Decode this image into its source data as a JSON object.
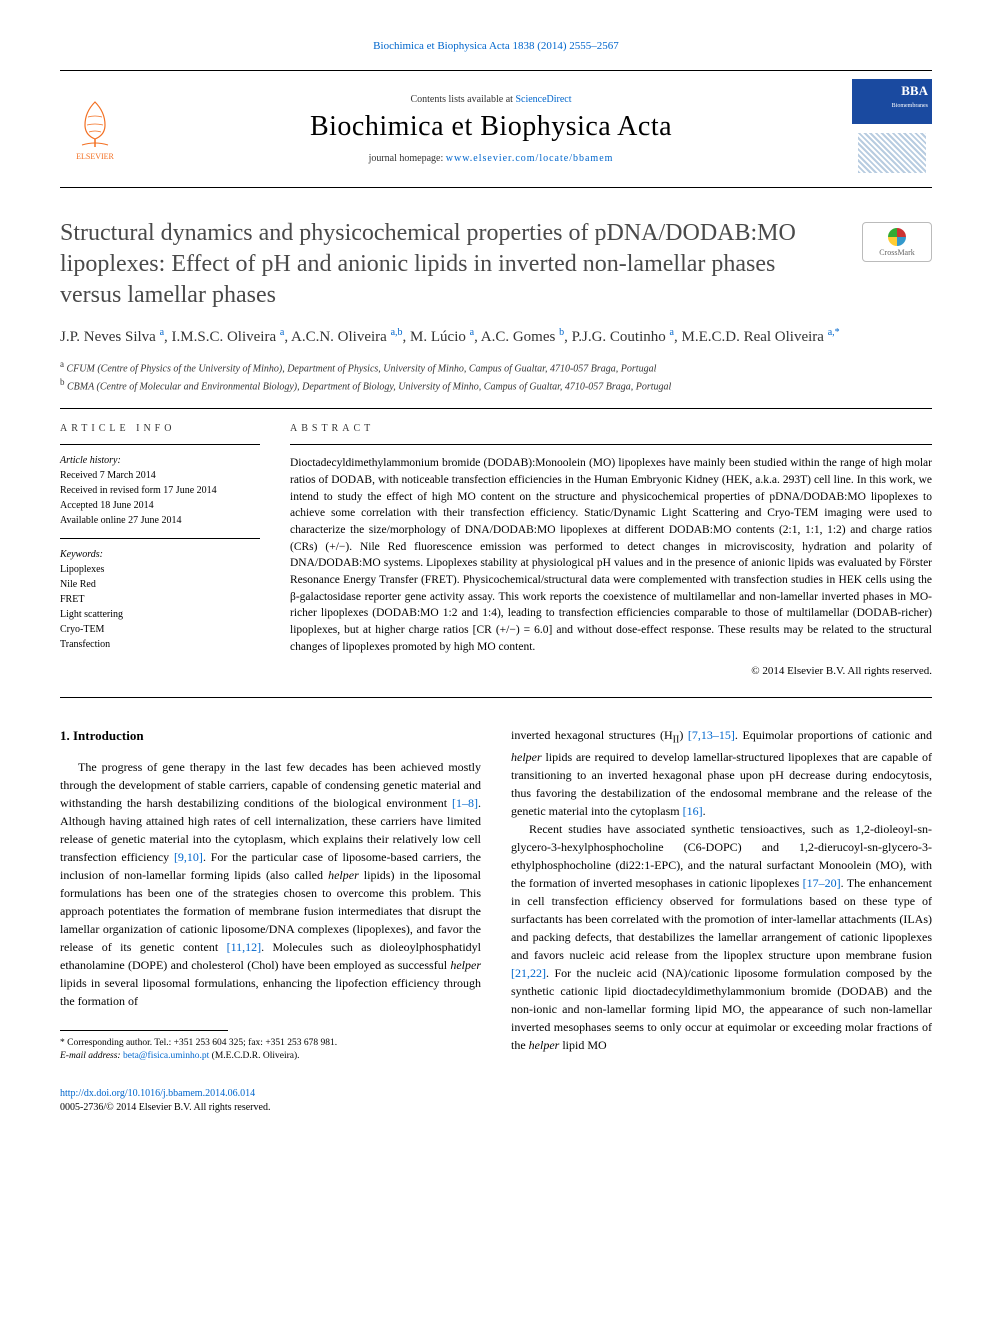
{
  "top_citation": "Biochimica et Biophysica Acta 1838 (2014) 2555–2567",
  "header": {
    "contents_prefix": "Contents lists available at ",
    "contents_link": "ScienceDirect",
    "journal_name": "Biochimica et Biophysica Acta",
    "homepage_prefix": "journal homepage: ",
    "homepage_url": "www.elsevier.com/locate/bbamem",
    "elsevier_label": "ELSEVIER",
    "cover_label": "BBA",
    "cover_sub": "Biomembranes"
  },
  "title": "Structural dynamics and physicochemical properties of pDNA/DODAB:MO lipoplexes: Effect of pH and anionic lipids in inverted non-lamellar phases versus lamellar phases",
  "crossmark_label": "CrossMark",
  "authors_html": "J.P. Neves Silva <sup>a</sup>, I.M.S.C. Oliveira <sup>a</sup>, A.C.N. Oliveira <sup>a,b</sup>, M. Lúcio <sup>a</sup>, A.C. Gomes <sup>b</sup>, P.J.G. Coutinho <sup>a</sup>, M.E.C.D. Real Oliveira <sup>a,*</sup>",
  "affiliations": {
    "a": "CFUM (Centre of Physics of the University of Minho), Department of Physics, University of Minho, Campus of Gualtar, 4710-057 Braga, Portugal",
    "b": "CBMA (Centre of Molecular and Environmental Biology), Department of Biology, University of Minho, Campus of Gualtar, 4710-057 Braga, Portugal"
  },
  "article_info": {
    "heading": "ARTICLE INFO",
    "history_title": "Article history:",
    "history": [
      "Received 7 March 2014",
      "Received in revised form 17 June 2014",
      "Accepted 18 June 2014",
      "Available online 27 June 2014"
    ],
    "keywords_title": "Keywords:",
    "keywords": [
      "Lipoplexes",
      "Nile Red",
      "FRET",
      "Light scattering",
      "Cryo-TEM",
      "Transfection"
    ]
  },
  "abstract": {
    "heading": "ABSTRACT",
    "body": "Dioctadecyldimethylammonium bromide (DODAB):Monoolein (MO) lipoplexes have mainly been studied within the range of high molar ratios of DODAB, with noticeable transfection efficiencies in the Human Embryonic Kidney (HEK, a.k.a. 293T) cell line. In this work, we intend to study the effect of high MO content on the structure and physicochemical properties of pDNA/DODAB:MO lipoplexes to achieve some correlation with their transfection efficiency. Static/Dynamic Light Scattering and Cryo-TEM imaging were used to characterize the size/morphology of DNA/DODAB:MO lipoplexes at different DODAB:MO contents (2:1, 1:1, 1:2) and charge ratios (CRs) (+/−). Nile Red fluorescence emission was performed to detect changes in microviscosity, hydration and polarity of DNA/DODAB:MO systems. Lipoplexes stability at physiological pH values and in the presence of anionic lipids was evaluated by Förster Resonance Energy Transfer (FRET). Physicochemical/structural data were complemented with transfection studies in HEK cells using the β-galactosidase reporter gene activity assay. This work reports the coexistence of multilamellar and non-lamellar inverted phases in MO-richer lipoplexes (DODAB:MO 1:2 and 1:4), leading to transfection efficiencies comparable to those of multilamellar (DODAB-richer) lipoplexes, but at higher charge ratios [CR (+/−) = 6.0] and without dose-effect response. These results may be related to the structural changes of lipoplexes promoted by high MO content.",
    "copyright": "© 2014 Elsevier B.V. All rights reserved."
  },
  "intro": {
    "heading": "1. Introduction",
    "col1_p1": "The progress of gene therapy in the last few decades has been achieved mostly through the development of stable carriers, capable of condensing genetic material and withstanding the harsh destabilizing conditions of the biological environment [1–8]. Although having attained high rates of cell internalization, these carriers have limited release of genetic material into the cytoplasm, which explains their relatively low cell transfection efficiency [9,10]. For the particular case of liposome-based carriers, the inclusion of non-lamellar forming lipids (also called helper lipids) in the liposomal formulations has been one of the strategies chosen to overcome this problem. This approach potentiates the formation of membrane fusion intermediates that disrupt the lamellar organization of cationic liposome/DNA complexes (lipoplexes), and favor the release of its genetic content [11,12]. Molecules such as dioleoylphosphatidyl ethanolamine (DOPE) and cholesterol (Chol) have been employed as successful helper lipids in several liposomal formulations, enhancing the lipofection efficiency through the formation of",
    "col2_p1": "inverted hexagonal structures (H_II) [7,13–15]. Equimolar proportions of cationic and helper lipids are required to develop lamellar-structured lipoplexes that are capable of transitioning to an inverted hexagonal phase upon pH decrease during endocytosis, thus favoring the destabilization of the endosomal membrane and the release of the genetic material into the cytoplasm [16].",
    "col2_p2": "Recent studies have associated synthetic tensioactives, such as 1,2-dioleoyl-sn-glycero-3-hexylphosphocholine (C6-DOPC) and 1,2-dierucoyl-sn-glycero-3-ethylphosphocholine (di22:1-EPC), and the natural surfactant Monoolein (MO), with the formation of inverted mesophases in cationic lipoplexes [17–20]. The enhancement in cell transfection efficiency observed for formulations based on these type of surfactants has been correlated with the promotion of inter-lamellar attachments (ILAs) and packing defects, that destabilizes the lamellar arrangement of cationic lipoplexes and favors nucleic acid release from the lipoplex structure upon membrane fusion [21,22]. For the nucleic acid (NA)/cationic liposome formulation composed by the synthetic cationic lipid dioctadecyldimethylammonium bromide (DODAB) and the non-ionic and non-lamellar forming lipid MO, the appearance of such non-lamellar inverted mesophases seems to only occur at equimolar or exceeding molar fractions of the helper lipid MO"
  },
  "footnote": {
    "corr": "* Corresponding author. Tel.: +351 253 604 325; fax: +351 253 678 981.",
    "email_label": "E-mail address: ",
    "email": "beta@fisica.uminho.pt",
    "email_suffix": " (M.E.C.D.R. Oliveira)."
  },
  "footer": {
    "doi": "http://dx.doi.org/10.1016/j.bbamem.2014.06.014",
    "issn_line": "0005-2736/© 2014 Elsevier B.V. All rights reserved."
  },
  "refs": {
    "r1": "[1–8]",
    "r2": "[9,10]",
    "r3": "[11,12]",
    "r4": "[7,13–15]",
    "r5": "[16]",
    "r6": "[17–20]",
    "r7": "[21,22]"
  }
}
